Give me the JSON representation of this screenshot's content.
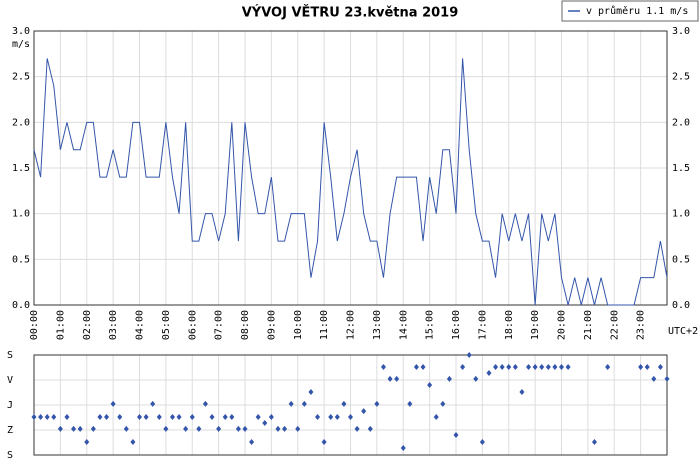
{
  "chart_data": [
    {
      "type": "line",
      "title": "VÝVOJ VĚTRU  23.května 2019",
      "y_label": "m/s",
      "x_label": "UTC+2",
      "legend": "top-right",
      "grid": true,
      "xlim": [
        0,
        24
      ],
      "ylim": [
        0,
        3
      ],
      "yticks": [
        {
          "value": 0,
          "label": "0.0"
        },
        0.5,
        {
          "value": 1,
          "label": "1.0"
        },
        1.5,
        {
          "value": 2,
          "label": "2.0"
        },
        2.5,
        {
          "value": 3,
          "label": "3.0"
        }
      ],
      "xticks": [
        {
          "value": 0,
          "label": "00:00"
        },
        {
          "value": 1,
          "label": "01:00"
        },
        {
          "value": 2,
          "label": "02:00"
        },
        {
          "value": 3,
          "label": "03:00"
        },
        {
          "value": 4,
          "label": "04:00"
        },
        {
          "value": 5,
          "label": "05:00"
        },
        {
          "value": 6,
          "label": "06:00"
        },
        {
          "value": 7,
          "label": "07:00"
        },
        {
          "value": 8,
          "label": "08:00"
        },
        {
          "value": 9,
          "label": "09:00"
        },
        {
          "value": 10,
          "label": "10:00"
        },
        {
          "value": 11,
          "label": "11:00"
        },
        {
          "value": 12,
          "label": "12:00"
        },
        {
          "value": 13,
          "label": "13:00"
        },
        {
          "value": 14,
          "label": "14:00"
        },
        {
          "value": 15,
          "label": "15:00"
        },
        {
          "value": 16,
          "label": "16:00"
        },
        {
          "value": 17,
          "label": "17:00"
        },
        {
          "value": 18,
          "label": "18:00"
        },
        {
          "value": 19,
          "label": "19:00"
        },
        {
          "value": 20,
          "label": "20:00"
        },
        {
          "value": 21,
          "label": "21:00"
        },
        {
          "value": 22,
          "label": "22:00"
        },
        {
          "value": 23,
          "label": "23:00"
        }
      ],
      "x": [
        0,
        0.25,
        0.5,
        0.75,
        1,
        1.25,
        1.5,
        1.75,
        2,
        2.25,
        2.5,
        2.75,
        3,
        3.25,
        3.5,
        3.75,
        4,
        4.25,
        4.5,
        4.75,
        5,
        5.25,
        5.5,
        5.75,
        6,
        6.25,
        6.5,
        6.75,
        7,
        7.25,
        7.5,
        7.75,
        8,
        8.25,
        8.5,
        8.75,
        9,
        9.25,
        9.5,
        9.75,
        10,
        10.25,
        10.5,
        10.75,
        11,
        11.25,
        11.5,
        11.75,
        12,
        12.25,
        12.5,
        12.75,
        13,
        13.25,
        13.5,
        13.75,
        14,
        14.25,
        14.5,
        14.75,
        15,
        15.25,
        15.5,
        15.75,
        16,
        16.25,
        16.5,
        16.75,
        17,
        17.25,
        17.5,
        17.75,
        18,
        18.25,
        18.5,
        18.75,
        19,
        19.25,
        19.5,
        19.75,
        20,
        20.25,
        20.5,
        20.75,
        21,
        21.25,
        21.5,
        21.75,
        22,
        22.25,
        22.5,
        22.75,
        23,
        23.25,
        23.5,
        23.75,
        24
      ],
      "series": [
        {
          "name": "v průměru 1.1 m/s",
          "color": "#3355aa",
          "values": [
            1.7,
            1.4,
            2.7,
            2.4,
            1.7,
            2.0,
            1.7,
            1.7,
            2.0,
            2.0,
            1.4,
            1.4,
            1.7,
            1.4,
            1.4,
            2.0,
            2.0,
            1.4,
            1.4,
            1.4,
            2.0,
            1.4,
            1.0,
            2.0,
            0.7,
            0.7,
            1.0,
            1.0,
            0.7,
            1.0,
            2.0,
            0.7,
            2.0,
            1.4,
            1.0,
            1.0,
            1.4,
            0.7,
            0.7,
            1.0,
            1.0,
            1.0,
            0.3,
            0.7,
            2.0,
            1.4,
            0.7,
            1.0,
            1.4,
            1.7,
            1.0,
            0.7,
            0.7,
            0.3,
            1.0,
            1.4,
            1.4,
            1.4,
            1.4,
            0.7,
            1.4,
            1.0,
            1.7,
            1.7,
            1.0,
            2.7,
            1.7,
            1.0,
            0.7,
            0.7,
            0.3,
            1.0,
            0.7,
            1.0,
            0.7,
            1.0,
            0.0,
            1.0,
            0.7,
            1.0,
            0.3,
            0.0,
            0.3,
            0.0,
            0.3,
            0.0,
            0.3,
            0.0,
            0.0,
            0.0,
            0.0,
            0.0,
            0.3,
            0.3,
            0.3,
            0.7,
            0.3
          ]
        }
      ]
    },
    {
      "type": "scatter",
      "grid": true,
      "xlim": [
        0,
        24
      ],
      "ylim": [
        360,
        0
      ],
      "xticks": [
        0,
        1,
        2,
        3,
        4,
        5,
        6,
        7,
        8,
        9,
        10,
        11,
        12,
        13,
        14,
        15,
        16,
        17,
        18,
        19,
        20,
        21,
        22,
        23
      ],
      "yticks": [
        {
          "value": 0,
          "label": "S"
        },
        {
          "value": 90,
          "label": "V"
        },
        {
          "value": 180,
          "label": "J"
        },
        {
          "value": 270,
          "label": "Z"
        },
        {
          "value": 360,
          "label": "S"
        }
      ],
      "series": [
        {
          "color": "#3355aa",
          "x": [
            0,
            0.25,
            0.5,
            0.75,
            1,
            1.25,
            1.5,
            1.75,
            2,
            2.25,
            2.5,
            2.75,
            3,
            3.25,
            3.5,
            3.75,
            4,
            4.25,
            4.5,
            4.75,
            5,
            5.25,
            5.5,
            5.75,
            6,
            6.25,
            6.5,
            6.75,
            7,
            7.25,
            7.5,
            7.75,
            8,
            8.25,
            8.5,
            8.75,
            9,
            9.25,
            9.5,
            9.75,
            10,
            10.25,
            10.5,
            10.75,
            11,
            11.25,
            11.5,
            11.75,
            12,
            12.25,
            12.5,
            12.75,
            13,
            13.25,
            13.5,
            13.75,
            14,
            14.25,
            14.5,
            14.75,
            15,
            15.25,
            15.5,
            15.75,
            16,
            16.25,
            16.5,
            16.75,
            17,
            17.25,
            17.5,
            17.75,
            18,
            18.25,
            18.5,
            18.75,
            19,
            19.25,
            19.5,
            19.75,
            20,
            20.25,
            21.25,
            21.75,
            23,
            23.25,
            23.5,
            23.75,
            24
          ],
          "values": [
            223,
            223,
            223,
            223,
            266,
            223,
            266,
            266,
            313,
            266,
            223,
            223,
            176,
            223,
            266,
            313,
            223,
            223,
            176,
            223,
            266,
            223,
            223,
            266,
            223,
            266,
            176,
            223,
            266,
            223,
            223,
            266,
            266,
            313,
            223,
            245,
            223,
            266,
            266,
            176,
            266,
            176,
            133,
            223,
            313,
            223,
            223,
            176,
            223,
            266,
            202,
            266,
            176,
            43,
            86,
            86,
            335,
            176,
            43,
            43,
            108,
            223,
            176,
            86,
            288,
            43,
            0,
            86,
            313,
            65,
            43,
            43,
            43,
            43,
            133,
            43,
            43,
            43,
            43,
            43,
            43,
            43,
            313,
            43,
            43,
            43,
            86,
            43,
            86
          ]
        }
      ]
    }
  ]
}
